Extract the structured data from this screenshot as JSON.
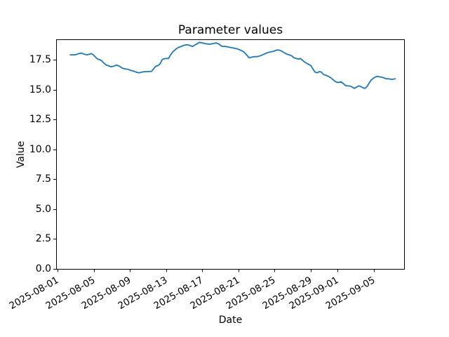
{
  "chart_data": {
    "type": "line",
    "title": "Parameter values",
    "xlabel": "Date",
    "ylabel": "Value",
    "grid": false,
    "legend": false,
    "x_tick_rotation_deg": 30,
    "xlim": [
      "2025-07-31 20:00",
      "2025-09-08 10:00"
    ],
    "ylim": [
      0,
      19.2
    ],
    "y_ticks": [
      {
        "value": 0,
        "label": "0.0"
      },
      {
        "value": 2.5,
        "label": "2.5"
      },
      {
        "value": 5,
        "label": "5.0"
      },
      {
        "value": 7.5,
        "label": "7.5"
      },
      {
        "value": 10,
        "label": "10.0"
      },
      {
        "value": 12.5,
        "label": "12.5"
      },
      {
        "value": 15,
        "label": "15.0"
      },
      {
        "value": 17.5,
        "label": "17.5"
      }
    ],
    "x_ticks": [
      {
        "date": "2025-08-01",
        "label": "2025-08-01"
      },
      {
        "date": "2025-08-05",
        "label": "2025-08-05"
      },
      {
        "date": "2025-08-09",
        "label": "2025-08-09"
      },
      {
        "date": "2025-08-13",
        "label": "2025-08-13"
      },
      {
        "date": "2025-08-17",
        "label": "2025-08-17"
      },
      {
        "date": "2025-08-21",
        "label": "2025-08-21"
      },
      {
        "date": "2025-08-25",
        "label": "2025-08-25"
      },
      {
        "date": "2025-08-29",
        "label": "2025-08-29"
      },
      {
        "date": "2025-09-01",
        "label": "2025-09-01"
      },
      {
        "date": "2025-09-05",
        "label": "2025-09-05"
      }
    ],
    "series": [
      {
        "name": "parameter-values",
        "color": "#1f77b4",
        "points": [
          [
            "2025-08-02 09:30",
            17.9
          ],
          [
            "2025-08-02 17:00",
            17.9
          ],
          [
            "2025-08-03 00:30",
            17.92
          ],
          [
            "2025-08-03 08:00",
            18.0
          ],
          [
            "2025-08-03 15:20",
            18.05
          ],
          [
            "2025-08-03 22:50",
            17.95
          ],
          [
            "2025-08-04 06:15",
            17.9
          ],
          [
            "2025-08-04 11:50",
            17.95
          ],
          [
            "2025-08-04 17:25",
            18.0
          ],
          [
            "2025-08-04 23:00",
            17.9
          ],
          [
            "2025-08-05 04:40",
            17.7
          ],
          [
            "2025-08-05 10:10",
            17.55
          ],
          [
            "2025-08-05 15:50",
            17.5
          ],
          [
            "2025-08-05 21:20",
            17.4
          ],
          [
            "2025-08-06 03:00",
            17.2
          ],
          [
            "2025-08-06 08:35",
            17.05
          ],
          [
            "2025-08-06 14:10",
            17.0
          ],
          [
            "2025-08-06 21:35",
            16.9
          ],
          [
            "2025-08-07 05:05",
            16.95
          ],
          [
            "2025-08-07 12:30",
            17.05
          ],
          [
            "2025-08-07 19:55",
            16.95
          ],
          [
            "2025-08-08 03:25",
            16.8
          ],
          [
            "2025-08-08 10:50",
            16.72
          ],
          [
            "2025-08-08 18:15",
            16.7
          ],
          [
            "2025-08-09 01:45",
            16.6
          ],
          [
            "2025-08-09 09:10",
            16.55
          ],
          [
            "2025-08-09 16:35",
            16.45
          ],
          [
            "2025-08-10 00:10",
            16.4
          ],
          [
            "2025-08-10 07:40",
            16.45
          ],
          [
            "2025-08-10 15:05",
            16.5
          ],
          [
            "2025-08-11 00:20",
            16.5
          ],
          [
            "2025-08-11 09:40",
            16.52
          ],
          [
            "2025-08-11 15:20",
            16.75
          ],
          [
            "2025-08-11 20:50",
            16.95
          ],
          [
            "2025-08-12 02:25",
            17.0
          ],
          [
            "2025-08-12 08:00",
            17.15
          ],
          [
            "2025-08-12 13:35",
            17.5
          ],
          [
            "2025-08-12 19:10",
            17.58
          ],
          [
            "2025-08-13 00:45",
            17.6
          ],
          [
            "2025-08-13 06:25",
            17.6
          ],
          [
            "2025-08-13 12:00",
            17.9
          ],
          [
            "2025-08-13 17:35",
            18.15
          ],
          [
            "2025-08-13 23:10",
            18.3
          ],
          [
            "2025-08-14 04:45",
            18.45
          ],
          [
            "2025-08-14 10:20",
            18.55
          ],
          [
            "2025-08-14 16:00",
            18.6
          ],
          [
            "2025-08-14 23:25",
            18.7
          ],
          [
            "2025-08-15 06:50",
            18.75
          ],
          [
            "2025-08-15 14:20",
            18.7
          ],
          [
            "2025-08-15 21:45",
            18.6
          ],
          [
            "2025-08-16 03:20",
            18.7
          ],
          [
            "2025-08-16 08:55",
            18.8
          ],
          [
            "2025-08-16 16:25",
            18.95
          ],
          [
            "2025-08-16 23:50",
            18.9
          ],
          [
            "2025-08-17 07:20",
            18.85
          ],
          [
            "2025-08-17 14:45",
            18.8
          ],
          [
            "2025-08-17 22:10",
            18.8
          ],
          [
            "2025-08-18 05:40",
            18.85
          ],
          [
            "2025-08-18 13:05",
            18.9
          ],
          [
            "2025-08-18 20:35",
            18.8
          ],
          [
            "2025-08-19 02:10",
            18.65
          ],
          [
            "2025-08-19 07:45",
            18.6
          ],
          [
            "2025-08-19 15:15",
            18.6
          ],
          [
            "2025-08-19 22:40",
            18.55
          ],
          [
            "2025-08-20 06:05",
            18.5
          ],
          [
            "2025-08-20 13:35",
            18.45
          ],
          [
            "2025-08-20 21:00",
            18.4
          ],
          [
            "2025-08-21 04:30",
            18.3
          ],
          [
            "2025-08-21 11:55",
            18.2
          ],
          [
            "2025-08-21 17:30",
            18.05
          ],
          [
            "2025-08-21 23:05",
            17.85
          ],
          [
            "2025-08-22 04:40",
            17.65
          ],
          [
            "2025-08-22 10:20",
            17.7
          ],
          [
            "2025-08-22 17:45",
            17.75
          ],
          [
            "2025-08-23 01:10",
            17.75
          ],
          [
            "2025-08-23 08:40",
            17.8
          ],
          [
            "2025-08-23 16:05",
            17.9
          ],
          [
            "2025-08-23 23:30",
            18.0
          ],
          [
            "2025-08-24 07:00",
            18.1
          ],
          [
            "2025-08-24 14:25",
            18.15
          ],
          [
            "2025-08-24 21:55",
            18.2
          ],
          [
            "2025-08-25 05:20",
            18.3
          ],
          [
            "2025-08-25 10:55",
            18.3
          ],
          [
            "2025-08-25 16:30",
            18.25
          ],
          [
            "2025-08-25 22:10",
            18.15
          ],
          [
            "2025-08-26 03:40",
            18.05
          ],
          [
            "2025-08-26 09:20",
            17.95
          ],
          [
            "2025-08-26 14:55",
            17.9
          ],
          [
            "2025-08-26 22:20",
            17.8
          ],
          [
            "2025-08-27 03:55",
            17.65
          ],
          [
            "2025-08-27 09:30",
            17.6
          ],
          [
            "2025-08-27 15:10",
            17.55
          ],
          [
            "2025-08-27 20:40",
            17.6
          ],
          [
            "2025-08-28 02:20",
            17.45
          ],
          [
            "2025-08-28 07:55",
            17.3
          ],
          [
            "2025-08-28 13:30",
            17.2
          ],
          [
            "2025-08-28 19:05",
            17.1
          ],
          [
            "2025-08-29 00:40",
            17.0
          ],
          [
            "2025-08-29 06:15",
            16.7
          ],
          [
            "2025-08-29 11:50",
            16.45
          ],
          [
            "2025-08-29 17:25",
            16.4
          ],
          [
            "2025-08-29 23:00",
            16.5
          ],
          [
            "2025-08-30 04:40",
            16.45
          ],
          [
            "2025-08-30 10:10",
            16.25
          ],
          [
            "2025-08-30 15:50",
            16.2
          ],
          [
            "2025-08-30 23:15",
            16.1
          ],
          [
            "2025-08-31 04:50",
            16.0
          ],
          [
            "2025-08-31 10:25",
            15.85
          ],
          [
            "2025-08-31 16:00",
            15.7
          ],
          [
            "2025-08-31 21:40",
            15.6
          ],
          [
            "2025-09-01 03:15",
            15.6
          ],
          [
            "2025-09-01 08:50",
            15.65
          ],
          [
            "2025-09-01 14:25",
            15.5
          ],
          [
            "2025-09-01 20:00",
            15.35
          ],
          [
            "2025-09-02 01:35",
            15.3
          ],
          [
            "2025-09-02 07:10",
            15.3
          ],
          [
            "2025-09-02 14:35",
            15.2
          ],
          [
            "2025-09-02 20:10",
            15.1
          ],
          [
            "2025-09-03 01:50",
            15.2
          ],
          [
            "2025-09-03 07:20",
            15.3
          ],
          [
            "2025-09-03 13:00",
            15.25
          ],
          [
            "2025-09-03 18:30",
            15.15
          ],
          [
            "2025-09-04 00:10",
            15.1
          ],
          [
            "2025-09-04 05:45",
            15.25
          ],
          [
            "2025-09-04 11:20",
            15.55
          ],
          [
            "2025-09-04 16:55",
            15.8
          ],
          [
            "2025-09-04 22:30",
            15.95
          ],
          [
            "2025-09-05 04:05",
            16.05
          ],
          [
            "2025-09-05 09:40",
            16.1
          ],
          [
            "2025-09-05 17:10",
            16.05
          ],
          [
            "2025-09-06 00:35",
            16.0
          ],
          [
            "2025-09-06 08:00",
            15.9
          ],
          [
            "2025-09-06 15:30",
            15.9
          ],
          [
            "2025-09-06 23:00",
            15.85
          ],
          [
            "2025-09-07 08:15",
            15.9
          ]
        ]
      }
    ]
  }
}
